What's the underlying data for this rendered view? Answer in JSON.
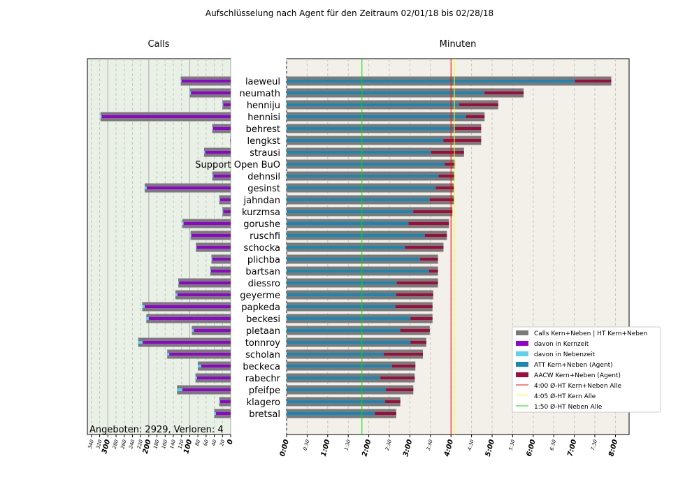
{
  "title": "Aufschlüsselung nach Agent für den Zeitraum 02/01/18 bis 02/28/18",
  "footer_text": "Angeboten: 2929, Verloren: 4",
  "colors": {
    "calls_total": "#7a7a7a",
    "kernzeit": "#9400d3",
    "nebenzeit": "#5ad2f0",
    "att": "#1787b8",
    "aacw": "#a00a3c",
    "line_kern_neben": "#ff0000",
    "line_kern": "#ffff00",
    "line_neben": "#00e000",
    "calls_bg": "#e9f0e6",
    "minutes_bg": "#f3f0ea"
  },
  "chart_data": [
    {
      "type": "bar",
      "title": "Calls",
      "orientation": "horizontal",
      "x_inverted": true,
      "xlim": [
        0,
        350
      ],
      "x_ticks": [
        {
          "value": 340,
          "label": "340"
        },
        {
          "value": 320,
          "label": "320"
        },
        {
          "value": 300,
          "label": "300",
          "major": true
        },
        {
          "value": 280,
          "label": "280"
        },
        {
          "value": 260,
          "label": "260"
        },
        {
          "value": 240,
          "label": "240"
        },
        {
          "value": 220,
          "label": "220"
        },
        {
          "value": 200,
          "label": "200",
          "major": true
        },
        {
          "value": 180,
          "label": "180"
        },
        {
          "value": 160,
          "label": "160"
        },
        {
          "value": 140,
          "label": "140"
        },
        {
          "value": 120,
          "label": "120"
        },
        {
          "value": 100,
          "label": "100",
          "major": true
        },
        {
          "value": 80,
          "label": "80"
        },
        {
          "value": 60,
          "label": "60"
        },
        {
          "value": 40,
          "label": "40"
        },
        {
          "value": 20,
          "label": "20"
        },
        {
          "value": 0,
          "label": "0",
          "major": true
        }
      ],
      "grid": true,
      "categories": [
        "laeweul",
        "neumath",
        "henniju",
        "hennisi",
        "behrest",
        "lengkst",
        "strausi",
        "Support Open BuO",
        "dehnsil",
        "gesinst",
        "jahndan",
        "kurzmsa",
        "gorushe",
        "ruschfi",
        "schocka",
        "plichba",
        "bartsan",
        "diessro",
        "geyerme",
        "papkeda",
        "beckesi",
        "pletaan",
        "tonnroy",
        "scholan",
        "beckeca",
        "rabechr",
        "pfeifpe",
        "klagero",
        "bretsal"
      ],
      "series": [
        {
          "name": "Calls Kern+Neben | HT Kern+Neben",
          "values": [
            122,
            100,
            20,
            318,
            45,
            1,
            65,
            0,
            45,
            210,
            28,
            20,
            118,
            98,
            85,
            47,
            50,
            128,
            135,
            216,
            206,
            95,
            226,
            155,
            80,
            86,
            131,
            28,
            40
          ]
        },
        {
          "name": "davon in Kernzeit",
          "values": [
            120,
            97,
            18,
            315,
            43,
            1,
            62,
            0,
            42,
            205,
            26,
            18,
            115,
            96,
            83,
            45,
            48,
            126,
            130,
            210,
            200,
            90,
            215,
            150,
            72,
            82,
            118,
            26,
            36
          ]
        },
        {
          "name": "davon in Nebenzeit",
          "values": [
            2,
            3,
            2,
            3,
            2,
            0,
            3,
            0,
            3,
            5,
            2,
            2,
            3,
            2,
            2,
            2,
            2,
            2,
            5,
            6,
            6,
            5,
            11,
            5,
            8,
            4,
            13,
            2,
            4
          ]
        }
      ]
    },
    {
      "type": "bar",
      "title": "Minuten",
      "orientation": "horizontal",
      "xlim": [
        0,
        500
      ],
      "x_ticks": [
        {
          "value": 0,
          "label": "0:00",
          "major": true
        },
        {
          "value": 30,
          "label": "0:30"
        },
        {
          "value": 60,
          "label": "1:00",
          "major": true
        },
        {
          "value": 90,
          "label": "1:30"
        },
        {
          "value": 120,
          "label": "2:00",
          "major": true
        },
        {
          "value": 150,
          "label": "2:30"
        },
        {
          "value": 180,
          "label": "3:00",
          "major": true
        },
        {
          "value": 210,
          "label": "3:30"
        },
        {
          "value": 240,
          "label": "4:00",
          "major": true
        },
        {
          "value": 270,
          "label": "4:30"
        },
        {
          "value": 300,
          "label": "5:00",
          "major": true
        },
        {
          "value": 330,
          "label": "5:30"
        },
        {
          "value": 360,
          "label": "6:00",
          "major": true
        },
        {
          "value": 390,
          "label": "6:30"
        },
        {
          "value": 420,
          "label": "7:00",
          "major": true
        },
        {
          "value": 450,
          "label": "7:30"
        },
        {
          "value": 480,
          "label": "8:00",
          "major": true
        }
      ],
      "grid": true,
      "legend_position": "bottom-right",
      "categories": [
        "laeweul",
        "neumath",
        "henniju",
        "hennisi",
        "behrest",
        "lengkst",
        "strausi",
        "Support Open BuO",
        "dehnsil",
        "gesinst",
        "jahndan",
        "kurzmsa",
        "gorushe",
        "ruschfi",
        "schocka",
        "plichba",
        "bartsan",
        "diessro",
        "geyerme",
        "papkeda",
        "beckesi",
        "pletaan",
        "tonnroy",
        "scholan",
        "beckeca",
        "rabechr",
        "pfeifpe",
        "klagero",
        "bretsal"
      ],
      "series": [
        {
          "name": "Calls Kern+Neben | HT Kern+Neben",
          "values": [
            474,
            346,
            309,
            289,
            284,
            284,
            259,
            246,
            245,
            244,
            244,
            242,
            237,
            234,
            229,
            221,
            221,
            221,
            214,
            213,
            213,
            209,
            204,
            199,
            188,
            187,
            185,
            166,
            160
          ]
        },
        {
          "name": "ATT Kern+Neben (Agent)",
          "values": [
            421,
            289,
            252,
            262,
            245,
            229,
            211,
            231,
            222,
            218,
            209,
            185,
            178,
            202,
            173,
            195,
            208,
            161,
            160,
            159,
            181,
            166,
            181,
            142,
            154,
            137,
            145,
            144,
            129
          ]
        },
        {
          "name": "AACW Kern+Neben (Agent)",
          "values": [
            53,
            57,
            57,
            27,
            39,
            55,
            48,
            15,
            23,
            26,
            35,
            57,
            59,
            32,
            56,
            26,
            13,
            60,
            54,
            54,
            32,
            43,
            23,
            57,
            34,
            50,
            40,
            22,
            31
          ]
        }
      ],
      "reference_lines": [
        {
          "name": "4:00 Ø-HT Kern+Neben Alle",
          "value": 240
        },
        {
          "name": "4:05 Ø-HT Kern Alle",
          "value": 245
        },
        {
          "name": "1:50 Ø-HT Neben Alle",
          "value": 110
        }
      ]
    }
  ]
}
